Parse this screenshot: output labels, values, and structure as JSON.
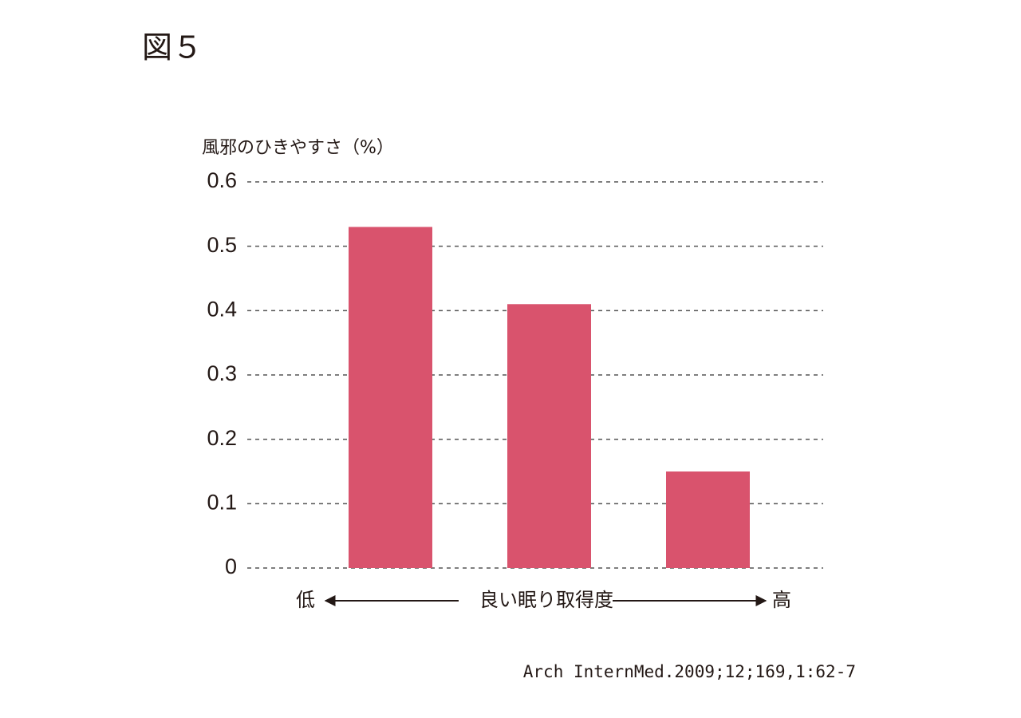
{
  "chart_data": {
    "type": "bar",
    "title": "図５",
    "y_label": "風邪のひきやすさ（%）",
    "x_label": "良い眠り取得度",
    "x_low": "低",
    "x_high": "高",
    "source": "Arch InternMed.2009;12;169,1:62-7",
    "categories": [
      null,
      null,
      null
    ],
    "values": [
      0.53,
      0.41,
      0.15
    ],
    "color": "#d9536d",
    "ylim": [
      0,
      0.6
    ],
    "yticks": [
      0,
      0.1,
      0.2,
      0.3,
      0.4,
      0.5,
      0.6
    ],
    "grid": true
  }
}
